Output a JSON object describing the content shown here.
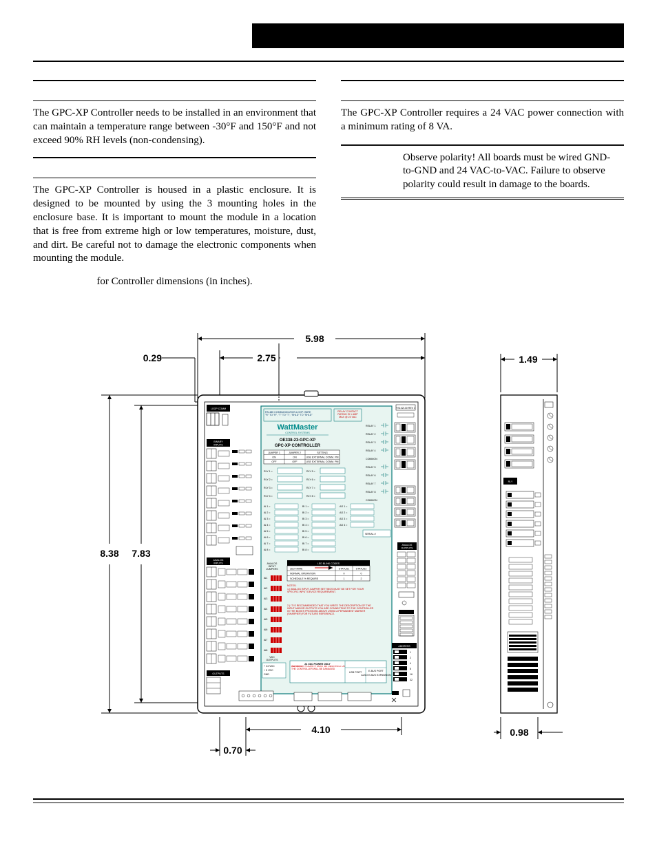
{
  "left": {
    "env_para": "The GPC-XP Controller needs to be installed in an environment that can maintain a temperature range between -30°F and 150°F and not exceed 90% RH levels (non-condensing).",
    "mount_para": "The GPC-XP Controller is housed in a plastic enclosure. It is designed to be mounted by using the 3 mounting holes in the enclosure base. It is important to mount the module in a location that is free from extreme high or low temperatures, moisture, dust, and dirt. Be careful not to damage the electronic components when mounting the module.",
    "dims_ref": "for Controller dimensions (in inches)."
  },
  "right": {
    "power_para": "The GPC-XP Controller requires a 24 VAC power connection with a minimum rating of 8 VA.",
    "caution": "Observe polarity! All boards must be wired GND-to-GND and 24 VAC-to-VAC. Failure to observe polarity could result in damage to the boards."
  },
  "figure": {
    "dims": {
      "w_full": "5.98",
      "w_mid": "2.75",
      "w_mholex": "0.29",
      "h_full": "8.38",
      "h_inner": "7.83",
      "w_bot": "4.10",
      "w_bot_off": "0.70",
      "side_w": "1.49",
      "side_d": "0.98"
    },
    "label": {
      "brand": "WattMaster",
      "brand_sub": "CONTROL SYSTEMS",
      "model1": "OE338-23-GPC-XP",
      "model2": "GPC-XP CONTROLLER",
      "rs485": "RS-485 COMMUNICATION LOOP: WIRE \"R\" TO \"R\", \"T\" TO \"T\", \"SHLD\" TO \"SHLD\"",
      "relay_rating_1": "RELAY CONTACT",
      "relay_rating_2": "RATING IS 1 AMP",
      "relay_rating_3": "MAX @ 24 VAC",
      "jumper_hdr": [
        "JUMPER 1",
        "JUMPER 2",
        "SETTING"
      ],
      "jumper_rows": [
        [
          "ON",
          "ON",
          "USE EXTERNAL COMM. PM"
        ],
        [
          "OFF",
          "OFF",
          "USE EXTERNAL COMM. PM"
        ]
      ],
      "rly_left": [
        "RLY 1 =",
        "RLY 2 =",
        "RLY 3 =",
        "RLY 4 ="
      ],
      "rly_mid": [
        "RLY 5 =",
        "RLY 6 =",
        "RLY 7 =",
        "RLY 8 ="
      ],
      "relays_r": [
        "RELAY 1",
        "RELAY 2",
        "RELAY 3",
        "RELAY 4",
        "COMMON",
        "RELAY 5",
        "RELAY 6",
        "RELAY 7",
        "RELAY 8",
        "COMMON"
      ],
      "ai_left": [
        "AI 1 =",
        "AI 2 =",
        "AI 3 =",
        "AI 4 =",
        "AI 5 =",
        "AI 6 =",
        "AI 7 =",
        "AI 8 ="
      ],
      "bi_mid": [
        "BI 1 =",
        "BI 2 =",
        "BI 3 =",
        "BI 4 =",
        "BI 5 =",
        "BI 6 =",
        "BI 7 =",
        "BI 8 ="
      ],
      "ao_r": [
        "AO 1 =",
        "AO 2 =",
        "AO 3 =",
        "AO 4 ="
      ],
      "serial": "SERIAL #",
      "analog_jumpers_1": "ANALOG",
      "analog_jumpers_2": "INPUT",
      "analog_jumpers_3": "JUMPERS",
      "led_hdr": "LED BLINK CODES",
      "led_cols": [
        "LED NAME",
        "STATUS1",
        "STATUS2"
      ],
      "led_rows": [
        [
          "NORMAL OPERATION",
          "0",
          "0"
        ],
        [
          "SCHEDULE % REQUIRE",
          "1",
          "2"
        ]
      ],
      "notes_hdr": "NOTES:",
      "notes_1": "1.) ANALOG INPUT JUMPER SETTINGS MUST BE SET FOR YOUR SPECIFIC INPUT DEVICE REQUIREMENT.",
      "notes_2": "2.) IT IS RECOMMENDED THAT YOU WRITE THE DESCRIPTION OF THE INPUT AND/OR OUTPUTS YOU ARE CONNECTING TO THE CONTROLLER IN THE BOXES PROVIDED ABOVE USING A PERMANENT MARKER (SHARPIE®) FOR FUTURE REFERENCE.",
      "vdc_hdr": "VDC\nOUTPUTS",
      "vdc_rows": [
        "+ 24 VDC",
        "+ 5 VDC",
        "GND"
      ],
      "pwr_hdr": "24 VAC POWER ONLY",
      "pwr_warn": "WARNING!! POLARITY MUST BE OBSERVED OR THE CONTROLLER WILL BE DAMAGED",
      "ports": [
        "USB PORT",
        "E-BUS PORT",
        "ALSO E-BUS EXPANSION"
      ],
      "version": "YS102130 REV 3",
      "address": "ADDRESS",
      "addr_bits": [
        "1",
        "2",
        "4",
        "8",
        "16",
        "32"
      ],
      "ai_side": [
        "AI1",
        "AI2",
        "AI3",
        "AI4",
        "AI5",
        "AI6",
        "AI7",
        "AI8"
      ],
      "side_labels_top": [
        "LOOP COMM"
      ],
      "side_labels_1": [
        "BINARY",
        "INPUTS"
      ],
      "side_labels_2": [
        "ANALOG",
        "INPUTS"
      ],
      "side_labels_3": [
        "OUTPUTS"
      ],
      "rly_box": "RLY",
      "analog_out": [
        "ANALOG",
        "OUTPUTS"
      ]
    },
    "colors": {
      "outline": "#000000",
      "board_fill": "#ffffff",
      "label_panel": "#e8f5f1",
      "label_border": "#0a7a7a",
      "dark_strip": "#000000",
      "red": "#cc0000",
      "teal_text": "#008b8b",
      "grid": "#666666"
    }
  }
}
